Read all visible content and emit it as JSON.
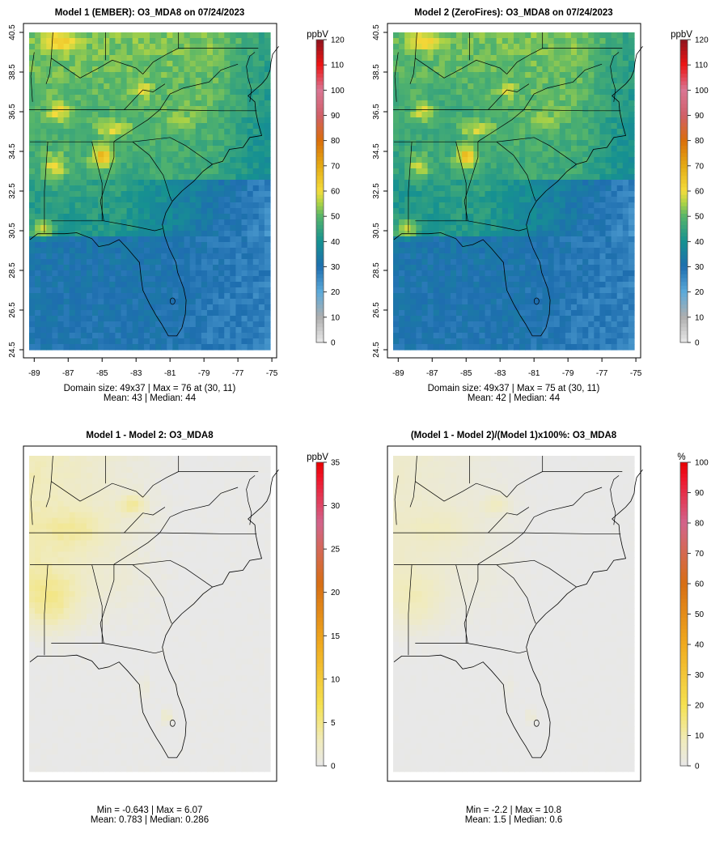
{
  "panels": [
    {
      "id": "model1",
      "title": "Model 1 (EMBER): O3_MDA8 on 07/24/2023",
      "unit": "ppbV",
      "x_ticks": [
        "-89",
        "-87",
        "-85",
        "-83",
        "-81",
        "-79",
        "-77",
        "-75"
      ],
      "y_ticks": [
        "24.5",
        "26.5",
        "28.5",
        "30.5",
        "32.5",
        "34.5",
        "36.5",
        "38.5",
        "40.5"
      ],
      "colorbar_ticks": [
        "0",
        "10",
        "20",
        "30",
        "40",
        "50",
        "60",
        "70",
        "80",
        "90",
        "100",
        "110",
        "120"
      ],
      "colorbar_max": 120,
      "palette": "conc",
      "stats": [
        "Domain size: 49x37 | Max = 76 at (30, 11)",
        "Mean: 43 |  Median: 44"
      ]
    },
    {
      "id": "model2",
      "title": "Model 2 (ZeroFires): O3_MDA8 on 07/24/2023",
      "unit": "ppbV",
      "x_ticks": [
        "-89",
        "-87",
        "-85",
        "-83",
        "-81",
        "-79",
        "-77",
        "-75"
      ],
      "y_ticks": [
        "24.5",
        "26.5",
        "28.5",
        "30.5",
        "32.5",
        "34.5",
        "36.5",
        "38.5",
        "40.5"
      ],
      "colorbar_ticks": [
        "0",
        "10",
        "20",
        "30",
        "40",
        "50",
        "60",
        "70",
        "80",
        "90",
        "100",
        "110",
        "120"
      ],
      "colorbar_max": 120,
      "palette": "conc",
      "stats": [
        "Domain size: 49x37 | Max = 75 at (30, 11)",
        "Mean: 42 |  Median: 44"
      ]
    },
    {
      "id": "diff",
      "title": "Model 1 - Model 2: O3_MDA8",
      "unit": "ppbV",
      "x_ticks": [],
      "y_ticks": [],
      "colorbar_ticks": [
        "0",
        "5",
        "10",
        "15",
        "20",
        "25",
        "30",
        "35"
      ],
      "colorbar_max": 35,
      "palette": "diff",
      "stats": [
        "Min = -0.643 | Max = 6.07",
        "Mean: 0.783 |  Median: 0.286"
      ]
    },
    {
      "id": "pct",
      "title": "(Model 1 - Model 2)/(Model 1)x100%: O3_MDA8",
      "unit": "%",
      "x_ticks": [],
      "y_ticks": [],
      "colorbar_ticks": [
        "0",
        "10",
        "20",
        "30",
        "40",
        "50",
        "60",
        "70",
        "80",
        "90",
        "100"
      ],
      "colorbar_max": 100,
      "palette": "diff",
      "stats": [
        "Min = -2.2 | Max = 10.8",
        "Mean: 1.5 |  Median: 0.6"
      ]
    }
  ]
}
